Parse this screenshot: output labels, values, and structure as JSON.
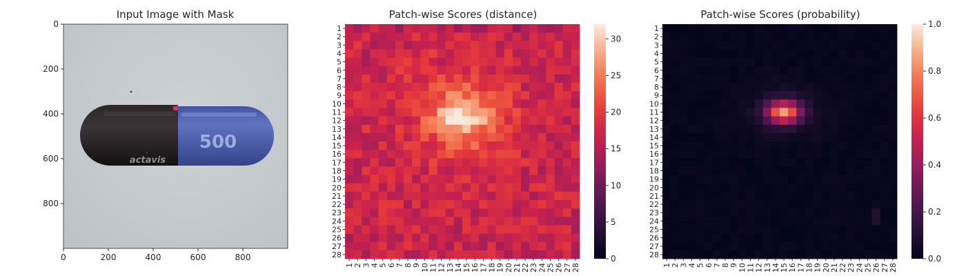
{
  "chart_data": [
    {
      "type": "image",
      "title": "Input Image with Mask",
      "xlim": [
        0,
        1000
      ],
      "ylim": [
        1000,
        0
      ],
      "x_ticks": [
        0,
        200,
        400,
        600,
        800
      ],
      "y_ticks": [
        0,
        200,
        400,
        600,
        800
      ],
      "capsule_text": "500",
      "capsule_brand": "actavis",
      "colors": {
        "background": "#c8cdd0",
        "cap_dark": "#1f1a1c",
        "body_blue": "#4d5fae",
        "mask_mark": "#e0306a"
      }
    },
    {
      "type": "heatmap",
      "title": "Patch-wise Scores (distance)",
      "rows": 28,
      "cols": 28,
      "tick_labels": [
        "1",
        "2",
        "3",
        "4",
        "5",
        "6",
        "7",
        "8",
        "9",
        "10",
        "11",
        "12",
        "13",
        "14",
        "15",
        "16",
        "17",
        "18",
        "19",
        "20",
        "21",
        "22",
        "23",
        "24",
        "25",
        "26",
        "27",
        "28"
      ],
      "colorscale": "rocket",
      "value_range": [
        0,
        32
      ],
      "colorbar_ticks": [
        0,
        5,
        10,
        15,
        20,
        25,
        30
      ],
      "baseline": 17,
      "hotspot": {
        "row": 11.5,
        "col": 14.5,
        "peak": 32
      },
      "colors": {
        "low": "#03051a",
        "mid": "#e13342",
        "high": "#faebdd"
      }
    },
    {
      "type": "heatmap",
      "title": "Patch-wise Scores (probability)",
      "rows": 28,
      "cols": 28,
      "tick_labels": [
        "1",
        "2",
        "3",
        "4",
        "5",
        "6",
        "7",
        "8",
        "9",
        "10",
        "11",
        "12",
        "13",
        "14",
        "15",
        "16",
        "17",
        "18",
        "19",
        "20",
        "21",
        "22",
        "23",
        "24",
        "25",
        "26",
        "27",
        "28"
      ],
      "colorscale": "rocket",
      "value_range": [
        0,
        1.0
      ],
      "colorbar_ticks": [
        "0.0",
        "0.2",
        "0.4",
        "0.6",
        "0.8",
        "1.0"
      ],
      "hotspot": {
        "row": 11,
        "col": 15,
        "peak": 0.75
      },
      "colors": {
        "low": "#03051a",
        "mid": "#e13342",
        "high": "#faebdd"
      }
    }
  ]
}
